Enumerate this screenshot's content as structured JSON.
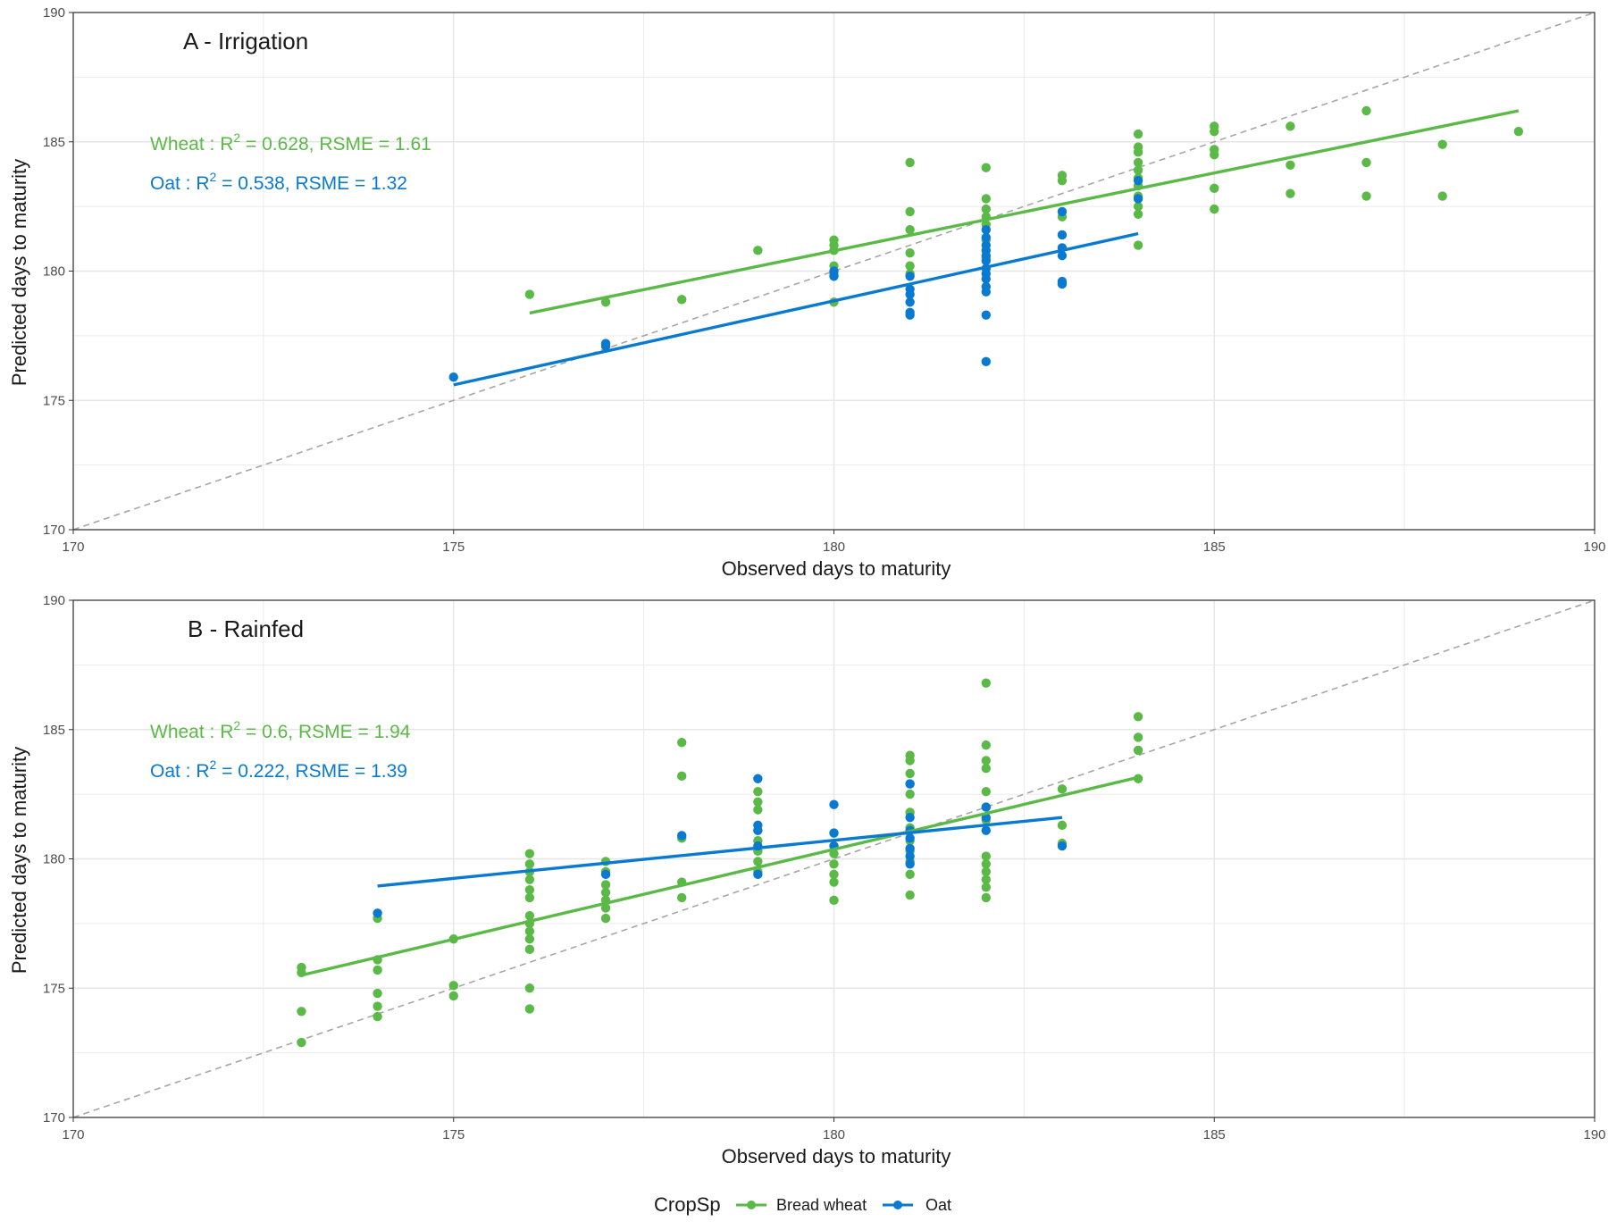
{
  "colors": {
    "wheat": "#5bb947",
    "oat": "#0a7ad1",
    "identity": "#a6a6a6",
    "grid": "#e6e6e6",
    "border": "#333333"
  },
  "legend": {
    "title": "CropSp",
    "position": "bottom",
    "items": [
      {
        "label": "Bread wheat",
        "color": "#5bb947"
      },
      {
        "label": "Oat",
        "color": "#0a7ad1"
      }
    ]
  },
  "chart_data": [
    {
      "type": "scatter",
      "title": "A - Irrigation",
      "xlabel": "Observed days to maturity",
      "ylabel": "Predicted days to maturity",
      "xlim": [
        170,
        190
      ],
      "ylim": [
        170,
        190
      ],
      "xticks": [
        "170",
        "175",
        "180",
        "185",
        "190"
      ],
      "yticks": [
        "170",
        "175",
        "180",
        "185",
        "190"
      ],
      "grid": true,
      "identity_line": true,
      "annotations": [
        {
          "series": "Bread wheat",
          "prefix": "Wheat : R",
          "sup": "2",
          "suffix": " = 0.628, RSME = 1.61"
        },
        {
          "series": "Oat",
          "prefix": "Oat : R",
          "sup": "2",
          "suffix": " = 0.538, RSME = 1.32"
        }
      ],
      "series": [
        {
          "name": "Bread wheat",
          "color": "#5bb947",
          "points": [
            [
              176,
              179.1
            ],
            [
              177,
              178.8
            ],
            [
              178,
              178.9
            ],
            [
              179,
              180.8
            ],
            [
              180,
              181.2
            ],
            [
              180,
              181.0
            ],
            [
              180,
              180.8
            ],
            [
              180,
              180.2
            ],
            [
              180,
              179.9
            ],
            [
              180,
              178.8
            ],
            [
              181,
              184.2
            ],
            [
              181,
              182.3
            ],
            [
              181,
              181.6
            ],
            [
              181,
              180.7
            ],
            [
              181,
              180.2
            ],
            [
              181,
              179.9
            ],
            [
              182,
              184.0
            ],
            [
              182,
              182.8
            ],
            [
              182,
              182.4
            ],
            [
              182,
              182.1
            ],
            [
              182,
              181.8
            ],
            [
              182,
              181.2
            ],
            [
              182,
              180.5
            ],
            [
              183,
              183.7
            ],
            [
              183,
              183.5
            ],
            [
              183,
              182.1
            ],
            [
              184,
              185.3
            ],
            [
              184,
              184.8
            ],
            [
              184,
              184.6
            ],
            [
              184,
              184.2
            ],
            [
              184,
              183.9
            ],
            [
              184,
              183.6
            ],
            [
              184,
              183.3
            ],
            [
              184,
              182.9
            ],
            [
              184,
              182.5
            ],
            [
              184,
              182.2
            ],
            [
              184,
              181.0
            ],
            [
              185,
              185.6
            ],
            [
              185,
              185.4
            ],
            [
              185,
              184.7
            ],
            [
              185,
              184.5
            ],
            [
              185,
              183.2
            ],
            [
              185,
              182.4
            ],
            [
              186,
              185.6
            ],
            [
              186,
              184.1
            ],
            [
              186,
              183.0
            ],
            [
              187,
              186.2
            ],
            [
              187,
              184.2
            ],
            [
              187,
              182.9
            ],
            [
              188,
              184.9
            ],
            [
              188,
              182.9
            ],
            [
              189,
              185.4
            ]
          ],
          "fit": [
            [
              176,
              178.38
            ],
            [
              189,
              186.2
            ]
          ]
        },
        {
          "name": "Oat",
          "color": "#0a7ad1",
          "points": [
            [
              175,
              175.9
            ],
            [
              177,
              177.2
            ],
            [
              177,
              177.1
            ],
            [
              180,
              180.0
            ],
            [
              180,
              179.8
            ],
            [
              181,
              179.8
            ],
            [
              181,
              179.3
            ],
            [
              181,
              179.1
            ],
            [
              181,
              178.8
            ],
            [
              181,
              178.4
            ],
            [
              181,
              178.3
            ],
            [
              182,
              181.6
            ],
            [
              182,
              181.3
            ],
            [
              182,
              181.0
            ],
            [
              182,
              180.8
            ],
            [
              182,
              180.6
            ],
            [
              182,
              180.4
            ],
            [
              182,
              180.1
            ],
            [
              182,
              179.9
            ],
            [
              182,
              179.7
            ],
            [
              182,
              179.4
            ],
            [
              182,
              179.2
            ],
            [
              182,
              178.3
            ],
            [
              182,
              176.5
            ],
            [
              183,
              182.3
            ],
            [
              183,
              181.4
            ],
            [
              183,
              180.9
            ],
            [
              183,
              180.6
            ],
            [
              183,
              179.6
            ],
            [
              183,
              179.5
            ],
            [
              184,
              183.5
            ],
            [
              184,
              182.8
            ]
          ],
          "fit": [
            [
              175,
              175.6
            ],
            [
              184,
              181.45
            ]
          ]
        }
      ]
    },
    {
      "type": "scatter",
      "title": "B - Rainfed",
      "xlabel": "Observed days to maturity",
      "ylabel": "Predicted days to maturity",
      "xlim": [
        170,
        190
      ],
      "ylim": [
        170,
        190
      ],
      "xticks": [
        "170",
        "175",
        "180",
        "185",
        "190"
      ],
      "yticks": [
        "170",
        "175",
        "180",
        "185",
        "190"
      ],
      "grid": true,
      "identity_line": true,
      "annotations": [
        {
          "series": "Bread wheat",
          "prefix": "Wheat : R",
          "sup": "2",
          "suffix": " = 0.6, RSME = 1.94"
        },
        {
          "series": "Oat",
          "prefix": "Oat : R",
          "sup": "2",
          "suffix": " = 0.222, RSME = 1.39"
        }
      ],
      "series": [
        {
          "name": "Bread wheat",
          "color": "#5bb947",
          "points": [
            [
              173,
              175.8
            ],
            [
              173,
              175.6
            ],
            [
              173,
              174.1
            ],
            [
              173,
              172.9
            ],
            [
              174,
              177.7
            ],
            [
              174,
              176.1
            ],
            [
              174,
              175.7
            ],
            [
              174,
              174.8
            ],
            [
              174,
              174.3
            ],
            [
              174,
              173.9
            ],
            [
              175,
              176.9
            ],
            [
              175,
              175.1
            ],
            [
              175,
              174.7
            ],
            [
              176,
              180.2
            ],
            [
              176,
              179.8
            ],
            [
              176,
              179.5
            ],
            [
              176,
              179.2
            ],
            [
              176,
              178.8
            ],
            [
              176,
              178.5
            ],
            [
              176,
              177.8
            ],
            [
              176,
              177.5
            ],
            [
              176,
              177.2
            ],
            [
              176,
              176.9
            ],
            [
              176,
              176.5
            ],
            [
              176,
              175.0
            ],
            [
              176,
              174.2
            ],
            [
              177,
              179.9
            ],
            [
              177,
              179.5
            ],
            [
              177,
              179.0
            ],
            [
              177,
              178.7
            ],
            [
              177,
              178.4
            ],
            [
              177,
              178.1
            ],
            [
              177,
              177.7
            ],
            [
              178,
              184.5
            ],
            [
              178,
              183.2
            ],
            [
              178,
              180.8
            ],
            [
              178,
              179.1
            ],
            [
              178,
              178.5
            ],
            [
              179,
              182.6
            ],
            [
              179,
              182.2
            ],
            [
              179,
              181.9
            ],
            [
              179,
              181.1
            ],
            [
              179,
              180.7
            ],
            [
              179,
              180.3
            ],
            [
              179,
              179.9
            ],
            [
              179,
              179.5
            ],
            [
              180,
              181.0
            ],
            [
              180,
              180.5
            ],
            [
              180,
              180.2
            ],
            [
              180,
              179.8
            ],
            [
              180,
              179.4
            ],
            [
              180,
              179.1
            ],
            [
              180,
              178.4
            ],
            [
              181,
              184.0
            ],
            [
              181,
              183.8
            ],
            [
              181,
              183.3
            ],
            [
              181,
              182.9
            ],
            [
              181,
              182.5
            ],
            [
              181,
              181.8
            ],
            [
              181,
              181.2
            ],
            [
              181,
              180.7
            ],
            [
              181,
              180.3
            ],
            [
              181,
              179.9
            ],
            [
              181,
              179.4
            ],
            [
              181,
              178.6
            ],
            [
              182,
              186.8
            ],
            [
              182,
              184.4
            ],
            [
              182,
              183.8
            ],
            [
              182,
              183.5
            ],
            [
              182,
              182.6
            ],
            [
              182,
              182.0
            ],
            [
              182,
              181.5
            ],
            [
              182,
              180.1
            ],
            [
              182,
              179.8
            ],
            [
              182,
              179.5
            ],
            [
              182,
              179.2
            ],
            [
              182,
              178.9
            ],
            [
              182,
              178.5
            ],
            [
              183,
              182.7
            ],
            [
              183,
              181.3
            ],
            [
              183,
              180.6
            ],
            [
              184,
              185.5
            ],
            [
              184,
              184.7
            ],
            [
              184,
              184.2
            ],
            [
              184,
              183.1
            ]
          ],
          "fit": [
            [
              173,
              175.5
            ],
            [
              184,
              183.15
            ]
          ]
        },
        {
          "name": "Oat",
          "color": "#0a7ad1",
          "points": [
            [
              174,
              177.9
            ],
            [
              177,
              179.4
            ],
            [
              178,
              180.9
            ],
            [
              179,
              183.1
            ],
            [
              179,
              181.3
            ],
            [
              179,
              181.1
            ],
            [
              179,
              180.5
            ],
            [
              179,
              179.4
            ],
            [
              180,
              182.1
            ],
            [
              180,
              181.0
            ],
            [
              180,
              180.5
            ],
            [
              181,
              182.9
            ],
            [
              181,
              181.6
            ],
            [
              181,
              181.1
            ],
            [
              181,
              180.8
            ],
            [
              181,
              180.4
            ],
            [
              181,
              180.1
            ],
            [
              181,
              179.8
            ],
            [
              182,
              182.0
            ],
            [
              182,
              181.6
            ],
            [
              182,
              181.1
            ],
            [
              183,
              180.5
            ]
          ],
          "fit": [
            [
              174,
              178.95
            ],
            [
              183,
              181.6
            ]
          ]
        }
      ]
    }
  ]
}
